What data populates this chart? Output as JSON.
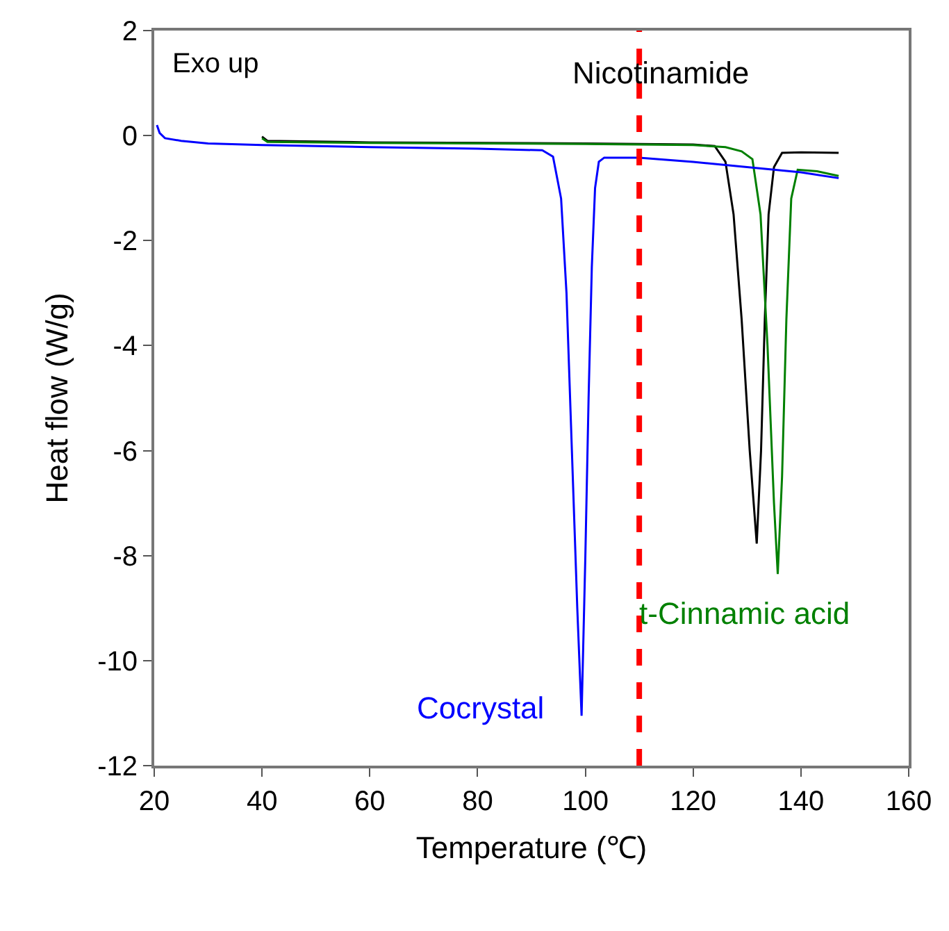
{
  "chart_data": {
    "type": "line",
    "xlabel": "Temperature (℃)",
    "ylabel": "Heat flow (W/g)",
    "annotations": [
      "Exo up"
    ],
    "xlim": [
      20,
      160
    ],
    "xticks": [
      20,
      40,
      60,
      80,
      100,
      120,
      140,
      160
    ],
    "ylim": [
      -12,
      2
    ],
    "yticks": [
      -12,
      -10,
      -8,
      -6,
      -4,
      -2,
      0,
      2
    ],
    "legend": false,
    "marker": "none",
    "line_style": "solid",
    "ref_lines": [
      {
        "axis": "x",
        "value": 110,
        "color": "#ff0000",
        "line_style": "dashed"
      }
    ],
    "series": [
      {
        "name": "Nicotinamide",
        "color": "#000000",
        "x": [
          40,
          41,
          60,
          100,
          120,
          124,
          126,
          127.5,
          129,
          130.5,
          131.8,
          132.6,
          133.3,
          134,
          135,
          136.5,
          140,
          147
        ],
        "values": [
          -0.02,
          -0.1,
          -0.13,
          -0.15,
          -0.17,
          -0.2,
          -0.5,
          -1.5,
          -3.5,
          -6,
          -7.77,
          -6,
          -3.5,
          -1.5,
          -0.6,
          -0.33,
          -0.32,
          -0.33
        ]
      },
      {
        "name": "t-Cinnamic acid",
        "color": "#008000",
        "x": [
          40,
          41,
          60,
          100,
          120,
          126,
          129,
          131,
          132.5,
          133.8,
          135,
          135.7,
          136.5,
          137.3,
          138.2,
          139.4,
          143,
          147
        ],
        "values": [
          -0.05,
          -0.12,
          -0.14,
          -0.16,
          -0.18,
          -0.22,
          -0.3,
          -0.45,
          -1.5,
          -4,
          -7,
          -8.35,
          -6.5,
          -3.5,
          -1.2,
          -0.65,
          -0.68,
          -0.77
        ]
      },
      {
        "name": "Cocrystal",
        "color": "#0000ff",
        "x": [
          20.5,
          21,
          22,
          25,
          30,
          40,
          60,
          80,
          92,
          94,
          95.5,
          96.5,
          97.5,
          98.5,
          99.3,
          100,
          100.6,
          101.2,
          101.8,
          102.5,
          103.5,
          110,
          120,
          130,
          140,
          147
        ],
        "values": [
          0.2,
          0.05,
          -0.05,
          -0.1,
          -0.15,
          -0.18,
          -0.22,
          -0.25,
          -0.28,
          -0.4,
          -1.2,
          -3,
          -6,
          -9,
          -11.05,
          -8,
          -5,
          -2.5,
          -1,
          -0.5,
          -0.42,
          -0.42,
          -0.5,
          -0.6,
          -0.7,
          -0.81
        ]
      }
    ]
  }
}
